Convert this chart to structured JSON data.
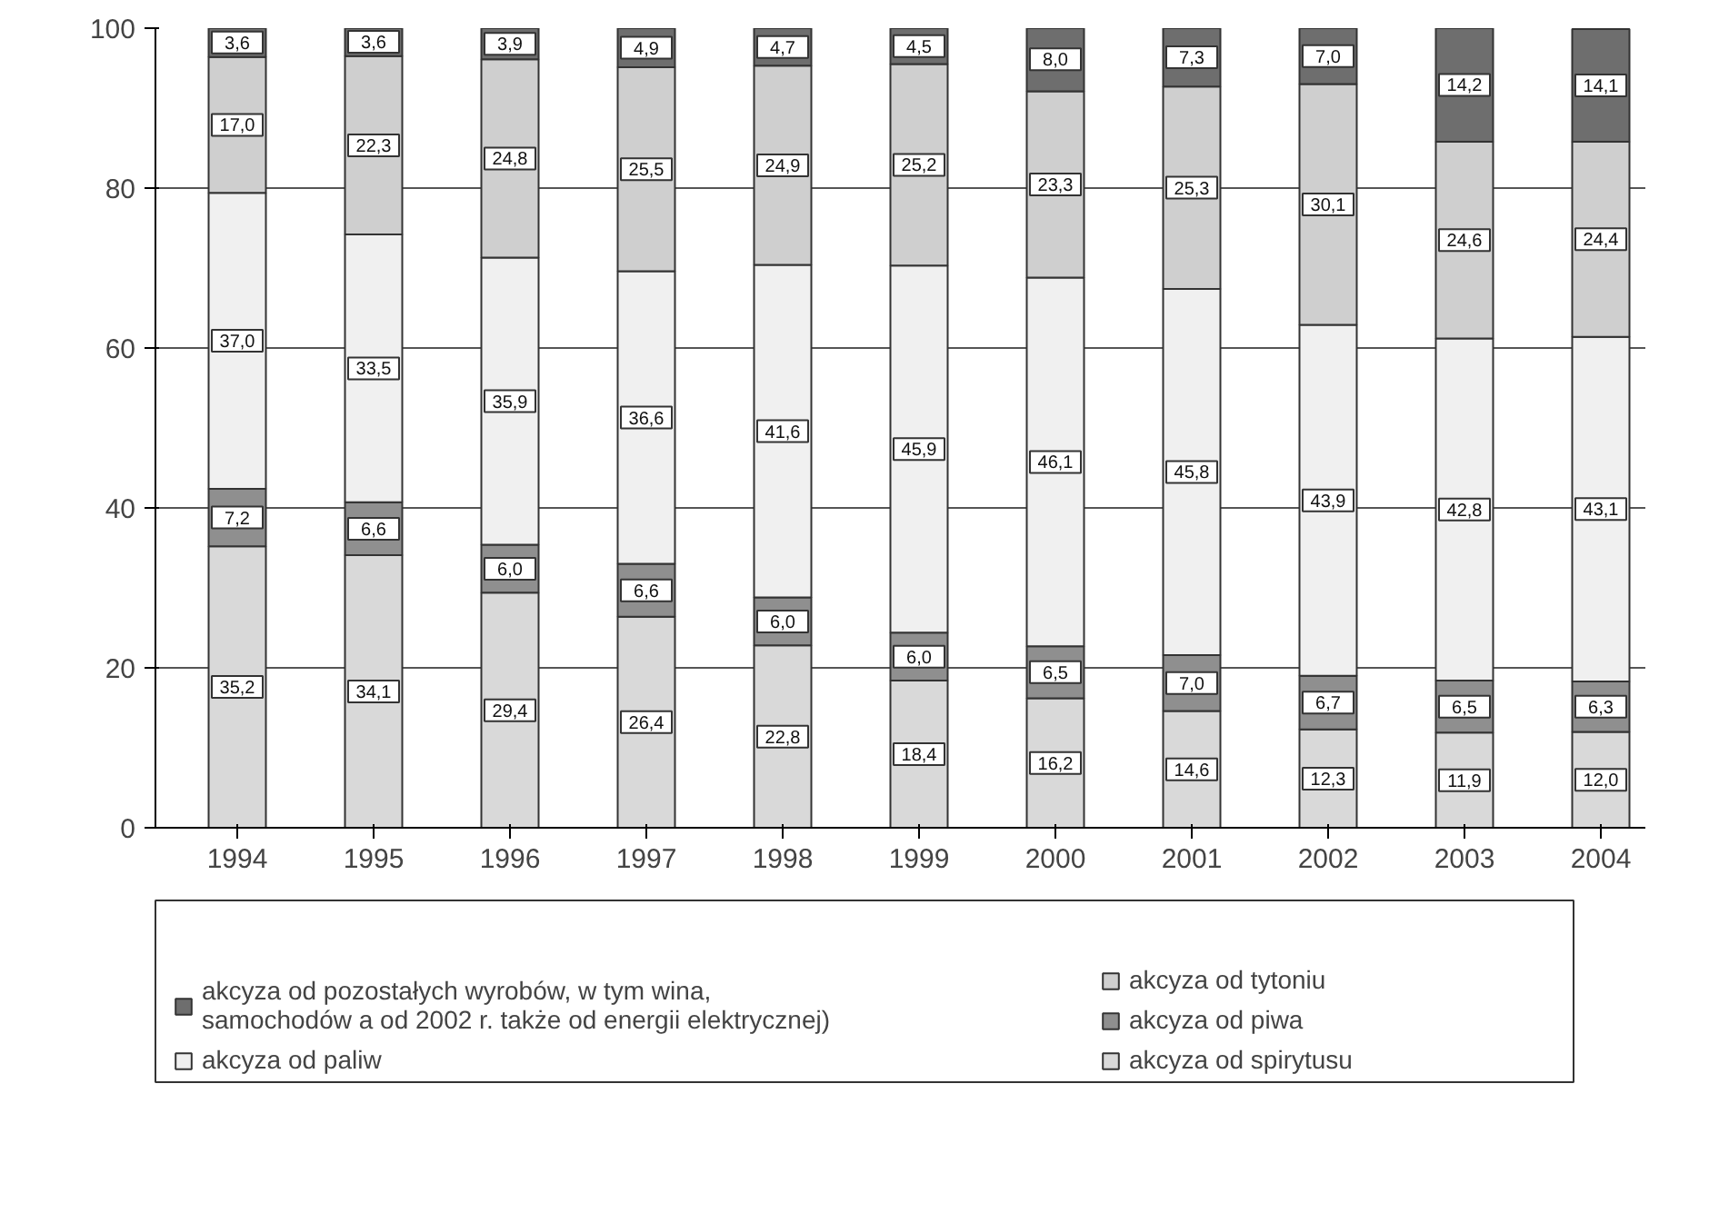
{
  "chart_data": {
    "type": "bar",
    "stacked": true,
    "categories": [
      "1994",
      "1995",
      "1996",
      "1997",
      "1998",
      "1999",
      "2000",
      "2001",
      "2002",
      "2003",
      "2004"
    ],
    "series": [
      {
        "name": "akcyza od spirytusu",
        "color": "#d9d9d9",
        "values": [
          35.2,
          34.1,
          29.4,
          26.4,
          22.8,
          18.4,
          16.2,
          14.6,
          12.3,
          11.9,
          12.0
        ],
        "value_labels": [
          "35,2",
          "34,1",
          "29,4",
          "26,4",
          "22,8",
          "18,4",
          "16,2",
          "14,6",
          "12,3",
          "11,9",
          "12,0"
        ]
      },
      {
        "name": "akcyza od piwa",
        "color": "#8f8f8f",
        "values": [
          7.2,
          6.6,
          6.0,
          6.6,
          6.0,
          6.0,
          6.5,
          7.0,
          6.7,
          6.5,
          6.3
        ],
        "value_labels": [
          "7,2",
          "6,6",
          "6,0",
          "6,6",
          "6,0",
          "6,0",
          "6,5",
          "7,0",
          "6,7",
          "6,5",
          "6,3"
        ]
      },
      {
        "name": "akcyza od paliw",
        "color": "#f0f0f0",
        "values": [
          37.0,
          33.5,
          35.9,
          36.6,
          41.6,
          45.9,
          46.1,
          45.8,
          43.9,
          42.8,
          43.1
        ],
        "value_labels": [
          "37,0",
          "33,5",
          "35,9",
          "36,6",
          "41,6",
          "45,9",
          "46,1",
          "45,8",
          "43,9",
          "42,8",
          "43,1"
        ]
      },
      {
        "name": "akcyza od tytoniu",
        "color": "#cfcfcf",
        "values": [
          17.0,
          22.3,
          24.8,
          25.5,
          24.9,
          25.2,
          23.3,
          25.3,
          30.1,
          24.6,
          24.4
        ],
        "value_labels": [
          "17,0",
          "22,3",
          "24,8",
          "25,5",
          "24,9",
          "25,2",
          "23,3",
          "25,3",
          "30,1",
          "24,6",
          "24,4"
        ]
      },
      {
        "name": "akcyza od pozostałych wyrobów, w tym wina,\nsamochodów a od 2002 r. także od energii elektrycznej)",
        "color": "#6e6e6e",
        "values": [
          3.6,
          3.6,
          3.9,
          4.9,
          4.7,
          4.5,
          8.0,
          7.3,
          7.0,
          14.2,
          14.1
        ],
        "value_labels": [
          "3,6",
          "3,6",
          "3,9",
          "4,9",
          "4,7",
          "4,5",
          "8,0",
          "7,3",
          "7,0",
          "14,2",
          "14,1"
        ]
      }
    ],
    "ylim": [
      0,
      100
    ],
    "yticks": [
      0,
      20,
      40,
      60,
      80,
      100
    ],
    "grid": "y",
    "legend": "bottom"
  }
}
